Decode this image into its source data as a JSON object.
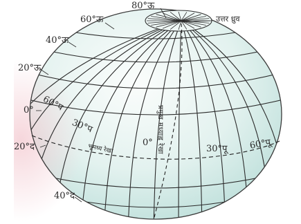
{
  "diagram": {
    "latitude_labels": {
      "lat_80n": "80°ऊ",
      "lat_60n": "60°ऊ",
      "lat_40n": "40°ऊ",
      "lat_20n": "20°ऊ",
      "lat_0": "0°",
      "lat_20s": "20°द",
      "lat_40s": "40°द"
    },
    "north_pole_label": "उत्तर ध्रुव",
    "longitude_labels": {
      "lon_60w": "60°प",
      "lon_30w": "30°प",
      "lon_0": "0°",
      "lon_30e": "30°पू",
      "lon_60e": "60°पू"
    },
    "equator_label": "भूमध्य रेखा",
    "prime_meridian_label": "प्रमुख मध्याह्न रेखा",
    "colors": {
      "globe_fill_top": "#f4f9f7",
      "globe_fill_bottom": "#c9e6e2",
      "grid_line": "#2b2b2b",
      "pink_tint": "#f3d1d6"
    }
  }
}
